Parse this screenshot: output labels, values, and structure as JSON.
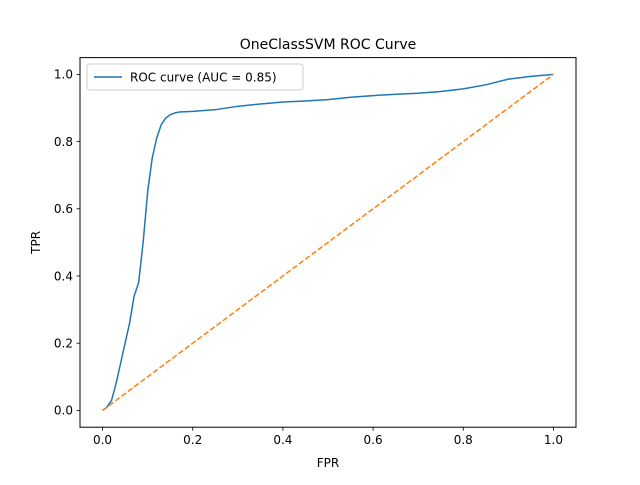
{
  "chart_data": {
    "type": "line",
    "title": "OneClassSVM ROC Curve",
    "xlabel": "FPR",
    "ylabel": "TPR",
    "xlim": [
      -0.05,
      1.05
    ],
    "ylim": [
      -0.05,
      1.05
    ],
    "xticks": [
      0.0,
      0.2,
      0.4,
      0.6,
      0.8,
      1.0
    ],
    "yticks": [
      0.0,
      0.2,
      0.4,
      0.6,
      0.8,
      1.0
    ],
    "xtick_labels": [
      "0.0",
      "0.2",
      "0.4",
      "0.6",
      "0.8",
      "1.0"
    ],
    "ytick_labels": [
      "0.0",
      "0.2",
      "0.4",
      "0.6",
      "0.8",
      "1.0"
    ],
    "grid": false,
    "legend_position": "top-left",
    "series": [
      {
        "name": "ROC curve (AUC = 0.85)",
        "color": "#1f77b4",
        "style": "solid",
        "x": [
          0.0,
          0.01,
          0.02,
          0.03,
          0.04,
          0.05,
          0.06,
          0.07,
          0.08,
          0.085,
          0.09,
          0.1,
          0.11,
          0.12,
          0.13,
          0.14,
          0.15,
          0.16,
          0.17,
          0.2,
          0.25,
          0.3,
          0.35,
          0.4,
          0.45,
          0.5,
          0.55,
          0.6,
          0.65,
          0.7,
          0.75,
          0.8,
          0.85,
          0.9,
          0.95,
          1.0
        ],
        "y": [
          0.0,
          0.01,
          0.03,
          0.08,
          0.14,
          0.2,
          0.26,
          0.34,
          0.38,
          0.44,
          0.5,
          0.65,
          0.75,
          0.81,
          0.85,
          0.87,
          0.88,
          0.885,
          0.888,
          0.89,
          0.895,
          0.905,
          0.912,
          0.918,
          0.921,
          0.925,
          0.932,
          0.937,
          0.941,
          0.944,
          0.949,
          0.957,
          0.969,
          0.986,
          0.994,
          1.0
        ]
      },
      {
        "name": "",
        "color": "#ff7f0e",
        "style": "dashed",
        "x": [
          0.0,
          1.0
        ],
        "y": [
          0.0,
          1.0
        ]
      }
    ]
  }
}
